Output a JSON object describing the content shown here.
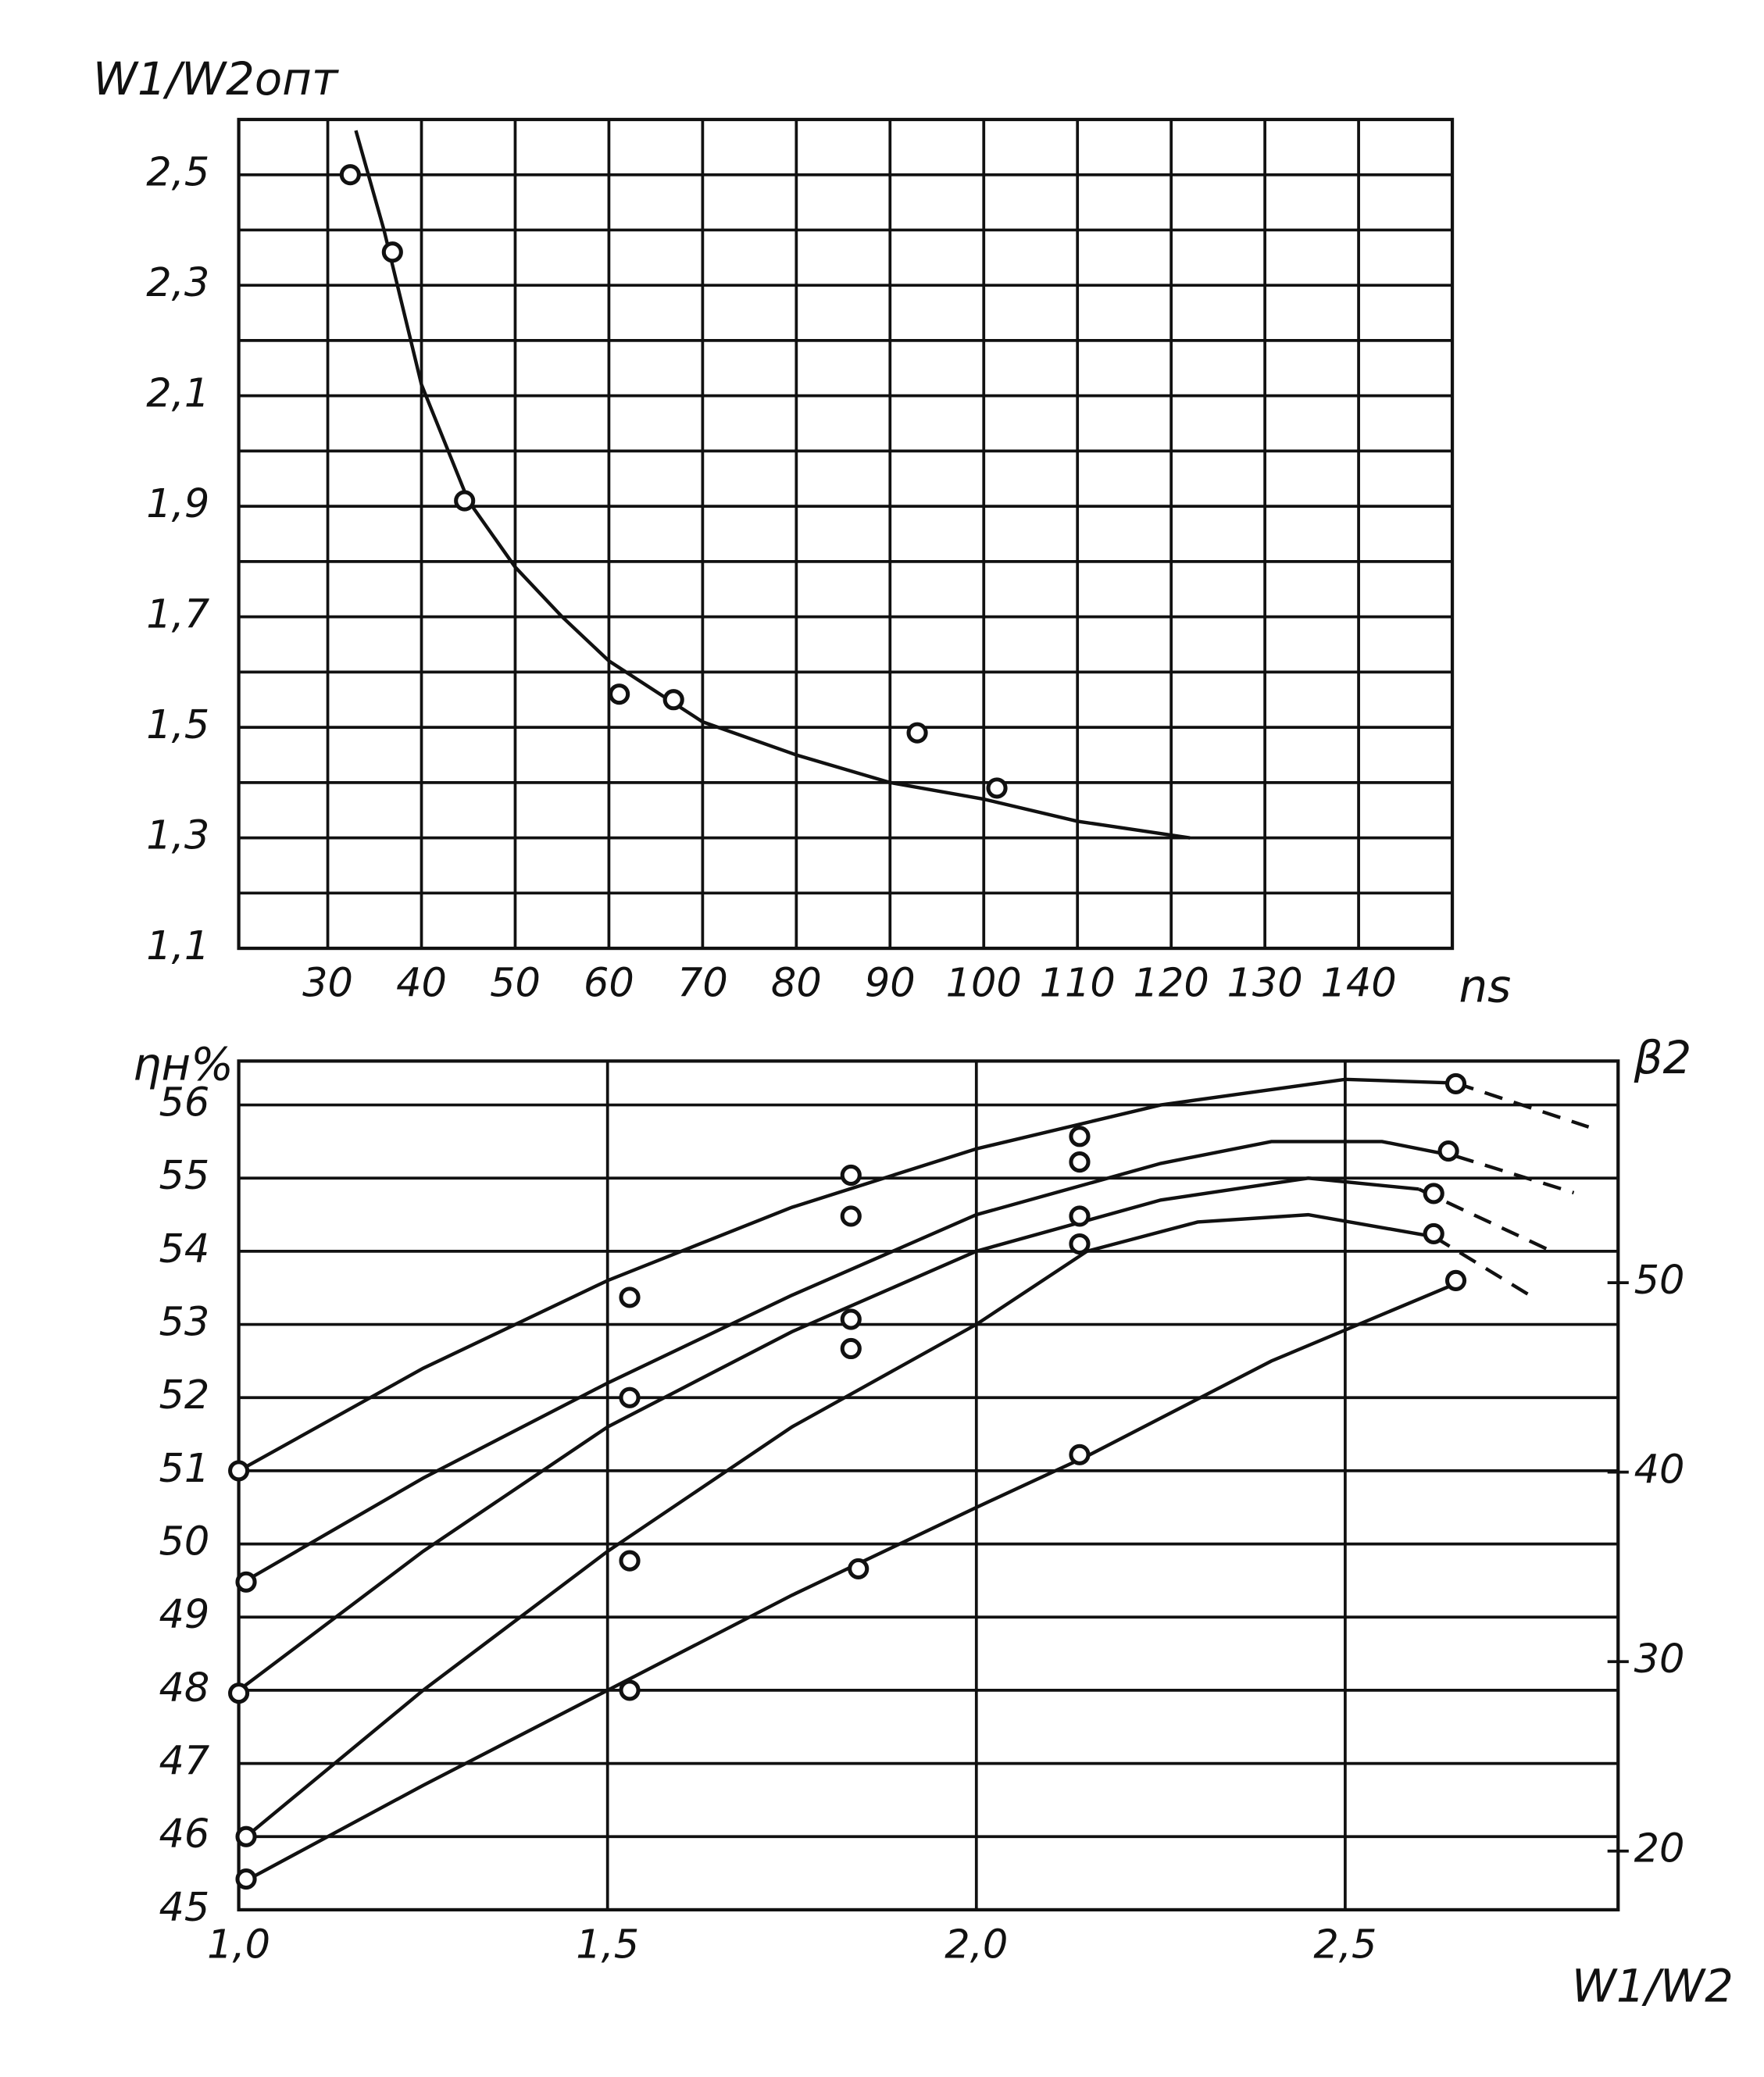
{
  "chart_data": [
    {
      "type": "scatter",
      "y_label": "W1/W2опт",
      "x_label": "ns",
      "color": "#111",
      "grid": true,
      "x": [
        32.4,
        36.9,
        44.6,
        61.1,
        66.9,
        92.9,
        101.4
      ],
      "values": [
        2.5,
        2.36,
        1.91,
        1.56,
        1.55,
        1.49,
        1.39
      ],
      "curve": {
        "x": [
          33,
          36,
          40,
          45,
          50,
          55,
          60,
          70,
          80,
          90,
          100,
          110,
          122
        ],
        "values": [
          2.58,
          2.4,
          2.12,
          1.91,
          1.79,
          1.7,
          1.62,
          1.51,
          1.45,
          1.4,
          1.37,
          1.33,
          1.3
        ]
      },
      "xlim": [
        20.5,
        150
      ],
      "ylim": [
        1.1,
        2.6
      ],
      "xticks": [
        30,
        40,
        50,
        60,
        70,
        80,
        90,
        100,
        110,
        120,
        130,
        140
      ],
      "yticks": [
        {
          "value": 1.1,
          "label": "1,1"
        },
        {
          "value": 1.3,
          "label": "1,3"
        },
        {
          "value": 1.5,
          "label": "1,5"
        },
        {
          "value": 1.7,
          "label": "1,7"
        },
        {
          "value": 1.9,
          "label": "1,9"
        },
        {
          "value": 2.1,
          "label": "2,1"
        },
        {
          "value": 2.3,
          "label": "2,3"
        },
        {
          "value": 2.5,
          "label": "2,5"
        }
      ],
      "yminorticks": [
        1.2,
        1.4,
        1.6,
        1.8,
        2.0,
        2.2,
        2.4,
        2.6
      ]
    },
    {
      "type": "scatter",
      "y_label": "ηн%",
      "y2_label": "β2",
      "x_label": "W1/W2",
      "color": "#111",
      "grid": true,
      "series": [
        {
          "x": [
            1.0,
            1.53,
            1.83,
            2.14,
            2.65
          ],
          "values": [
            51.0,
            53.37,
            55.04,
            55.57,
            56.29
          ],
          "curve": {
            "x": [
              1.0,
              1.25,
              1.5,
              1.75,
              2.0,
              2.25,
              2.5,
              2.65
            ],
            "values": [
              51.0,
              52.4,
              53.6,
              54.6,
              55.4,
              56.0,
              56.35,
              56.3
            ]
          },
          "dashed": {
            "x": [
              2.65,
              2.83
            ],
            "values": [
              56.3,
              55.7
            ]
          }
        },
        {
          "x": [
            1.01,
            1.53,
            1.83,
            2.14,
            2.64
          ],
          "values": [
            49.48,
            52.0,
            54.48,
            55.22,
            55.37
          ],
          "curve": {
            "x": [
              1.01,
              1.25,
              1.5,
              1.75,
              2.0,
              2.25,
              2.4,
              2.55,
              2.65
            ],
            "values": [
              49.5,
              50.9,
              52.2,
              53.4,
              54.5,
              55.2,
              55.5,
              55.5,
              55.3
            ]
          },
          "dashed": {
            "x": [
              2.65,
              2.81
            ],
            "values": [
              55.3,
              54.8
            ]
          }
        },
        {
          "x": [
            1.0,
            1.83,
            2.14,
            2.62
          ],
          "values": [
            47.96,
            53.07,
            54.48,
            54.79
          ],
          "curve": {
            "x": [
              1.0,
              1.25,
              1.5,
              1.75,
              2.0,
              2.25,
              2.45,
              2.6
            ],
            "values": [
              48.0,
              49.9,
              51.6,
              52.9,
              54.0,
              54.7,
              55.0,
              54.85
            ]
          },
          "dashed": {
            "x": [
              2.6,
              2.78
            ],
            "values": [
              54.85,
              54.0
            ]
          }
        },
        {
          "x": [
            1.01,
            1.53,
            1.83,
            2.14,
            2.62
          ],
          "values": [
            46.0,
            49.77,
            52.67,
            54.1,
            54.24
          ],
          "curve": {
            "x": [
              1.01,
              1.25,
              1.5,
              1.75,
              2.0,
              2.15,
              2.3,
              2.45,
              2.62
            ],
            "values": [
              46.0,
              48.0,
              49.9,
              51.6,
              53.0,
              54.0,
              54.4,
              54.5,
              54.2
            ]
          },
          "dashed": {
            "x": [
              2.62,
              2.75
            ],
            "values": [
              54.2,
              53.4
            ]
          }
        },
        {
          "x": [
            1.01,
            1.53,
            1.84,
            2.14,
            2.65
          ],
          "values": [
            45.42,
            48.0,
            49.66,
            51.22,
            53.6
          ],
          "curve": {
            "x": [
              1.01,
              1.25,
              1.5,
              1.75,
              2.0,
              2.15,
              2.4,
              2.66
            ],
            "values": [
              45.4,
              46.7,
              48.0,
              49.3,
              50.5,
              51.2,
              52.5,
              53.6
            ]
          }
        }
      ],
      "xlim": [
        1.0,
        2.87
      ],
      "ylim": [
        45,
        56.6
      ],
      "y2lim": [
        16.9,
        61.7
      ],
      "xticks": [
        {
          "value": 1.0,
          "label": "1,0"
        },
        {
          "value": 1.5,
          "label": "1,5"
        },
        {
          "value": 2.0,
          "label": "2,0"
        },
        {
          "value": 2.5,
          "label": "2,5"
        }
      ],
      "yticks": [
        45,
        46,
        47,
        48,
        49,
        50,
        51,
        52,
        53,
        54,
        55,
        56
      ],
      "y2ticks": [
        20,
        30,
        40,
        50
      ]
    }
  ]
}
